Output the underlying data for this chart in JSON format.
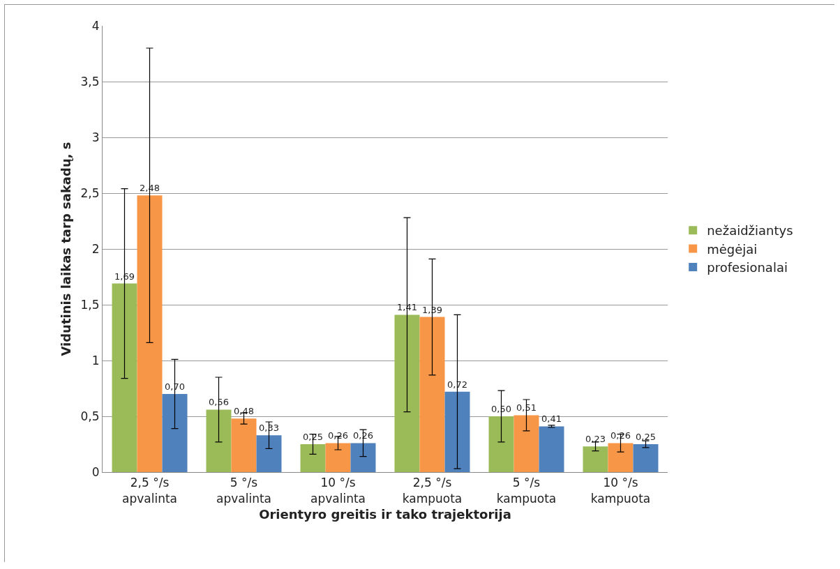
{
  "chart_data": {
    "type": "bar",
    "xlabel": "Orientyro greitis ir tako trajektorija",
    "ylabel": "Vidutinis laikas tarp sakadų, s",
    "categories": [
      "2,5 °/s\napvalinta",
      "5 °/s\napvalinta",
      "10 °/s\napvalinta",
      "2,5 °/s\nkampuota",
      "5 °/s\nkampuota",
      "10 °/s\nkampuota"
    ],
    "series": [
      {
        "name": "nežaidžiantys",
        "color": "#9bbb59",
        "values": [
          1.69,
          0.56,
          0.25,
          1.41,
          0.5,
          0.23
        ],
        "value_labels": [
          "1,69",
          "0,56",
          "0,25",
          "1,41",
          "0,50",
          "0,23"
        ],
        "errors": [
          0.85,
          0.29,
          0.09,
          0.87,
          0.23,
          0.04
        ]
      },
      {
        "name": "mėgėjai",
        "color": "#f79646",
        "values": [
          2.48,
          0.48,
          0.26,
          1.39,
          0.51,
          0.26
        ],
        "value_labels": [
          "2,48",
          "0,48",
          "0,26",
          "1,39",
          "0,51",
          "0,26"
        ],
        "errors": [
          1.32,
          0.05,
          0.06,
          0.52,
          0.14,
          0.08
        ]
      },
      {
        "name": "profesionalai",
        "color": "#4f81bd",
        "values": [
          0.7,
          0.33,
          0.26,
          0.72,
          0.41,
          0.25
        ],
        "value_labels": [
          "0,70",
          "0,33",
          "0,26",
          "0,72",
          "0,41",
          "0,25"
        ],
        "errors": [
          0.31,
          0.12,
          0.12,
          0.69,
          0.01,
          0.03
        ]
      }
    ],
    "ylim": [
      0,
      4
    ],
    "yticks": [
      0,
      {
        "value": 0.5,
        "label": "0,5"
      },
      1,
      {
        "value": 1.5,
        "label": "1,5"
      },
      2,
      {
        "value": 2.5,
        "label": "2,5"
      },
      3,
      {
        "value": 3.5,
        "label": "3,5"
      },
      4
    ],
    "grid": "y",
    "legend": "right"
  }
}
